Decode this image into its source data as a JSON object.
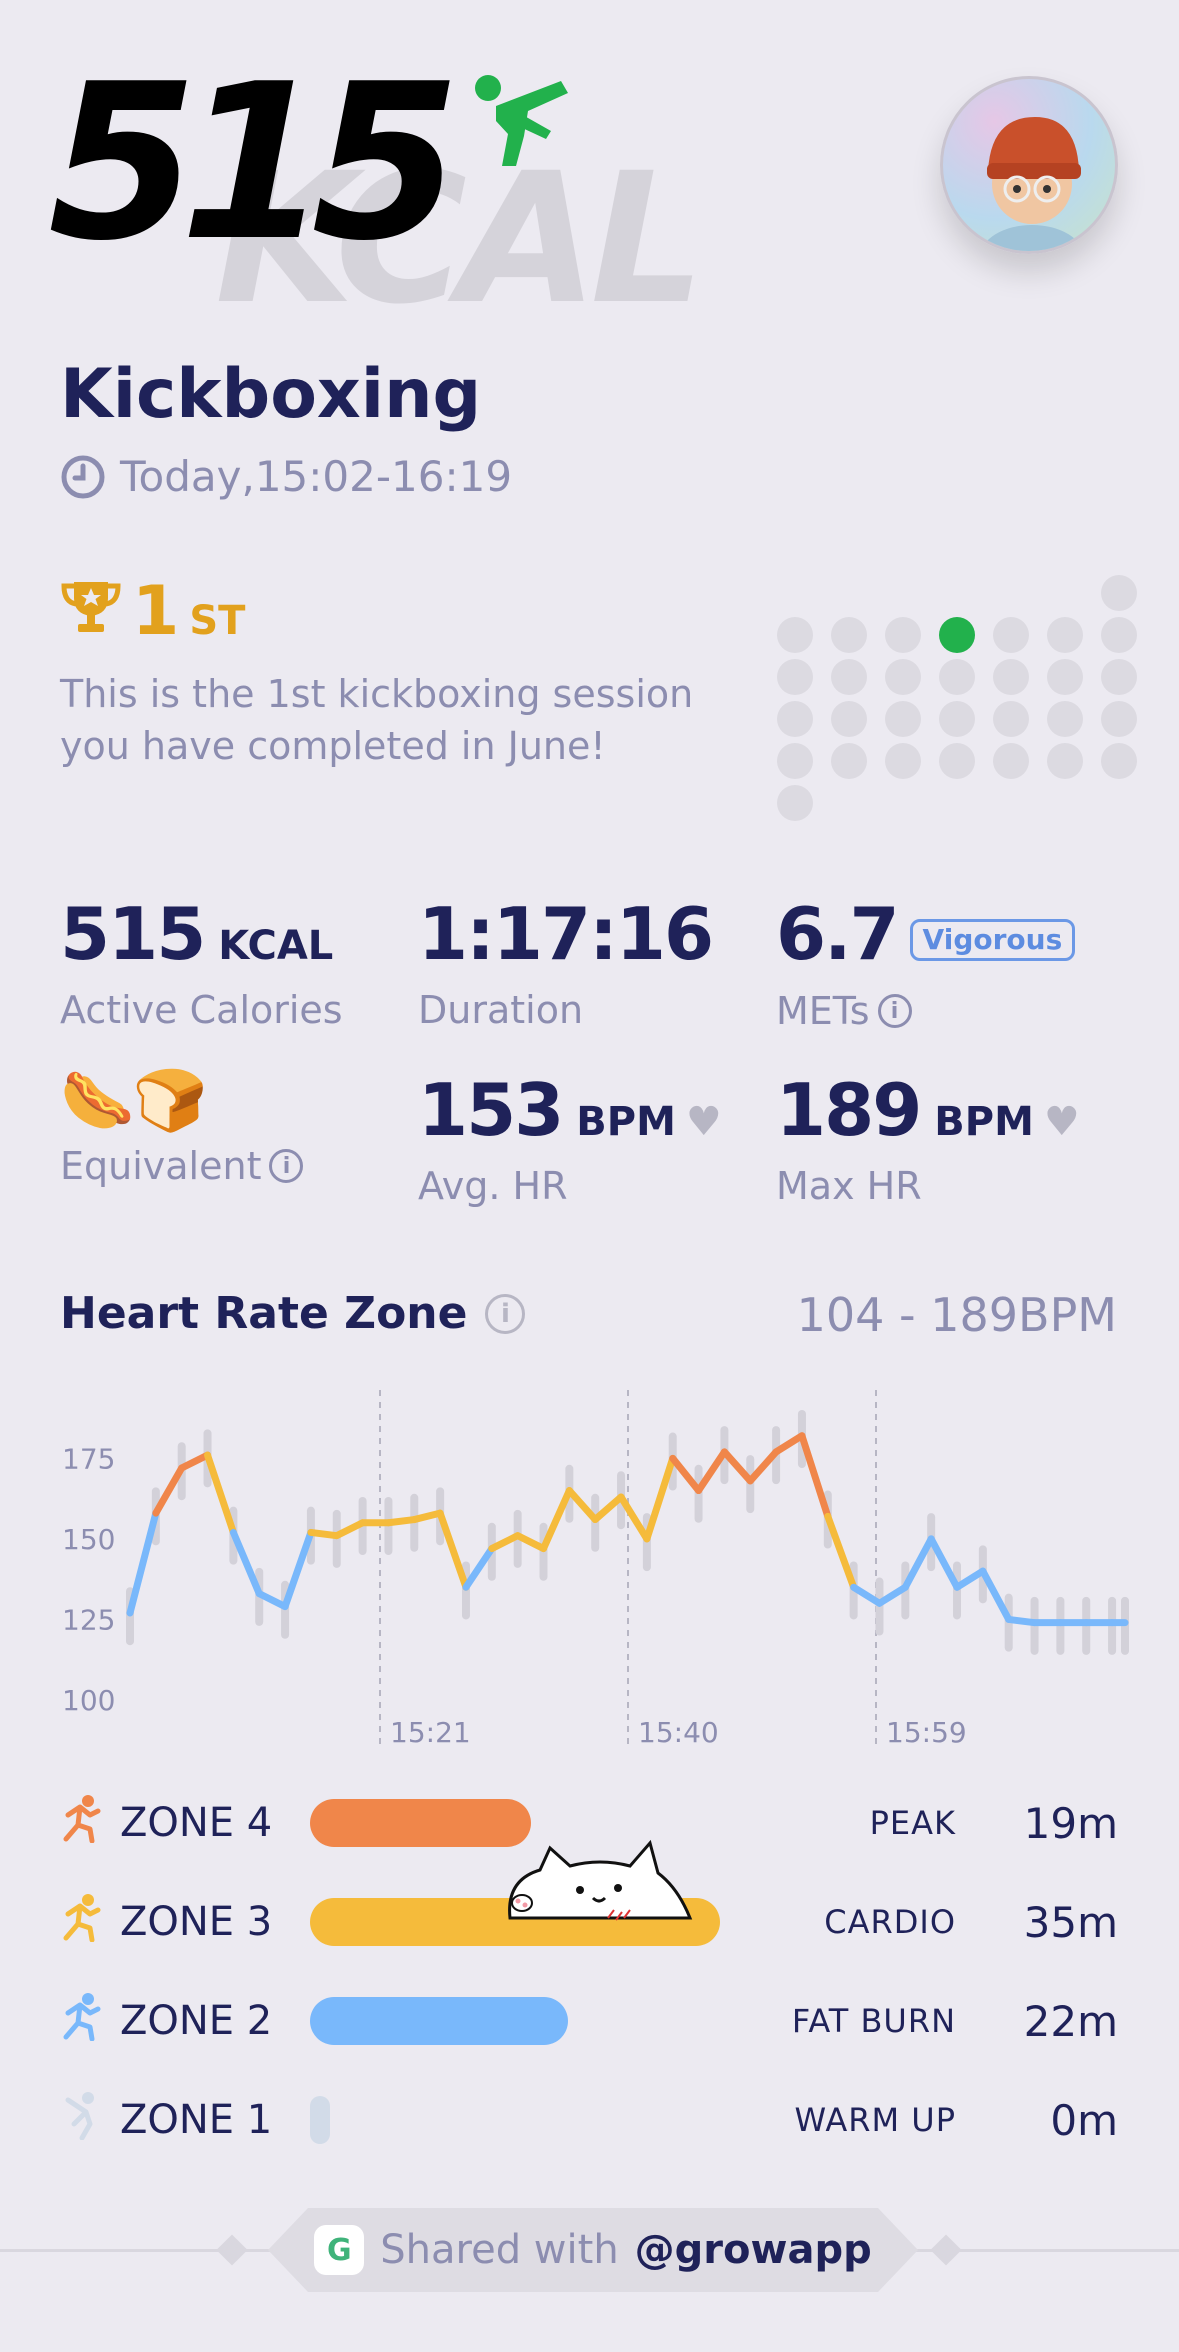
{
  "header": {
    "calories_big": "515",
    "calories_unit_bg": "KCAL",
    "activity_icon": "kickboxing-figure-icon",
    "avatar_icon": "user-avatar"
  },
  "session": {
    "title": "Kickboxing",
    "time": "Today,15:02-16:19"
  },
  "rank": {
    "number": "1",
    "suffix": "ST",
    "description": "This is the 1st kickboxing session you have completed in June!"
  },
  "stats": {
    "calories": {
      "value": "515",
      "unit": "KCAL",
      "label": "Active Calories"
    },
    "duration": {
      "value": "1:17:16",
      "label": "Duration"
    },
    "mets": {
      "value": "6.7",
      "badge": "Vigorous",
      "label": "METs"
    },
    "equivalent": {
      "icons": "🌭🍞",
      "label": "Equivalent"
    },
    "avg_hr": {
      "value": "153",
      "unit": "BPM",
      "label": "Avg. HR"
    },
    "max_hr": {
      "value": "189",
      "unit": "BPM",
      "label": "Max HR"
    }
  },
  "hr_zone": {
    "title": "Heart Rate Zone",
    "range": "104 - 189BPM"
  },
  "chart_data": {
    "type": "line",
    "y_ticks": [
      175,
      150,
      125,
      100
    ],
    "x_ticks": [
      "15:21",
      "15:40",
      "15:59"
    ],
    "ylim": [
      100,
      190
    ],
    "x": [
      0,
      2,
      4,
      6,
      8,
      10,
      12,
      14,
      16,
      18,
      20,
      22,
      24,
      26,
      28,
      30,
      32,
      34,
      36,
      38,
      40,
      42,
      44,
      46,
      48,
      50,
      52,
      54,
      56,
      58,
      60,
      62,
      64,
      66,
      68,
      70,
      72,
      74,
      76,
      77
    ],
    "values": [
      127,
      158,
      172,
      176,
      152,
      133,
      129,
      152,
      151,
      155,
      155,
      156,
      158,
      135,
      147,
      151,
      147,
      165,
      156,
      163,
      150,
      175,
      165,
      177,
      168,
      177,
      182,
      157,
      135,
      130,
      135,
      150,
      135,
      140,
      125,
      124,
      124,
      124,
      124,
      124
    ]
  },
  "zones": [
    {
      "icon": "runner-icon",
      "label": "ZONE 4",
      "name": "PEAK",
      "minutes": "19m",
      "fraction": 0.54,
      "color": "#f0864a"
    },
    {
      "icon": "runner-icon",
      "label": "ZONE 3",
      "name": "CARDIO",
      "minutes": "35m",
      "fraction": 1.0,
      "color": "#f5bb3b"
    },
    {
      "icon": "runner-icon",
      "label": "ZONE 2",
      "name": "FAT BURN",
      "minutes": "22m",
      "fraction": 0.63,
      "color": "#79b8fb"
    },
    {
      "icon": "stretch-icon",
      "label": "ZONE 1",
      "name": "WARM UP",
      "minutes": "0m",
      "fraction": 0.0,
      "color": "#d2dbe8"
    }
  ],
  "footer": {
    "text": "Shared with",
    "handle": "@growapp"
  },
  "colors": {
    "accent": "#1f2259",
    "muted": "#8c8db0",
    "gold": "#e2a11d",
    "active_dot": "#22b14c"
  }
}
